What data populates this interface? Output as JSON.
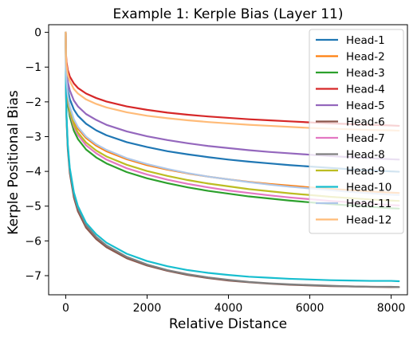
{
  "chart_data": {
    "type": "line",
    "title": "Example 1: Kerple Bias (Layer 11)",
    "xlabel": "Relative Distance",
    "ylabel": "Kerple Positional Bias",
    "xlim": [
      -420,
      8400
    ],
    "ylim": [
      -7.55,
      0.22
    ],
    "xticks": [
      0,
      2000,
      4000,
      6000,
      8000
    ],
    "xtick_labels": [
      "0",
      "2000",
      "4000",
      "6000",
      "8000"
    ],
    "yticks": [
      0,
      -1,
      -2,
      -3,
      -4,
      -5,
      -6,
      -7
    ],
    "ytick_labels": [
      "0",
      "−1",
      "−2",
      "−3",
      "−4",
      "−5",
      "−6",
      "−7"
    ],
    "grid": false,
    "legend_position": "top-right",
    "x": [
      0,
      5,
      20,
      50,
      100,
      200,
      300,
      500,
      750,
      1000,
      1500,
      2000,
      2500,
      3000,
      3500,
      4000,
      4500,
      5000,
      5500,
      6000,
      6500,
      7000,
      7500,
      8000,
      8191
    ],
    "series": [
      {
        "name": "Head-1",
        "color": "#1f77b4",
        "values": [
          0,
          -0.95,
          -1.32,
          -1.65,
          -1.92,
          -2.22,
          -2.4,
          -2.63,
          -2.82,
          -2.96,
          -3.16,
          -3.3,
          -3.42,
          -3.51,
          -3.59,
          -3.66,
          -3.72,
          -3.77,
          -3.82,
          -3.86,
          -3.9,
          -3.94,
          -3.97,
          -4.0,
          -4.01
        ]
      },
      {
        "name": "Head-2",
        "color": "#ff7f0e",
        "values": [
          0,
          -1.0,
          -1.45,
          -1.85,
          -2.18,
          -2.55,
          -2.77,
          -3.04,
          -3.26,
          -3.42,
          -3.65,
          -3.82,
          -3.95,
          -4.06,
          -4.15,
          -4.23,
          -4.3,
          -4.36,
          -4.41,
          -4.46,
          -4.5,
          -4.54,
          -4.58,
          -4.61,
          -4.62
        ]
      },
      {
        "name": "Head-3",
        "color": "#2ca02c",
        "values": [
          0,
          -1.1,
          -1.6,
          -2.05,
          -2.42,
          -2.83,
          -3.07,
          -3.37,
          -3.6,
          -3.77,
          -4.02,
          -4.2,
          -4.34,
          -4.46,
          -4.56,
          -4.64,
          -4.72,
          -4.78,
          -4.84,
          -4.89,
          -4.94,
          -4.98,
          -5.02,
          -5.06,
          -5.07
        ]
      },
      {
        "name": "Head-4",
        "color": "#d62728",
        "values": [
          0,
          -0.6,
          -0.85,
          -1.08,
          -1.27,
          -1.47,
          -1.6,
          -1.76,
          -1.89,
          -1.99,
          -2.13,
          -2.23,
          -2.31,
          -2.37,
          -2.42,
          -2.46,
          -2.5,
          -2.53,
          -2.56,
          -2.59,
          -2.62,
          -2.64,
          -2.66,
          -2.68,
          -2.69
        ]
      },
      {
        "name": "Head-5",
        "color": "#9467bd",
        "values": [
          0,
          -0.8,
          -1.12,
          -1.42,
          -1.67,
          -1.96,
          -2.13,
          -2.35,
          -2.52,
          -2.66,
          -2.85,
          -2.99,
          -3.1,
          -3.19,
          -3.27,
          -3.33,
          -3.39,
          -3.44,
          -3.48,
          -3.52,
          -3.56,
          -3.59,
          -3.62,
          -3.65,
          -3.66
        ]
      },
      {
        "name": "Head-6",
        "color": "#8c564b",
        "values": [
          0,
          -1.6,
          -2.5,
          -3.35,
          -4.05,
          -4.75,
          -5.15,
          -5.62,
          -5.95,
          -6.18,
          -6.5,
          -6.71,
          -6.86,
          -6.98,
          -7.07,
          -7.14,
          -7.19,
          -7.23,
          -7.26,
          -7.28,
          -7.3,
          -7.31,
          -7.32,
          -7.33,
          -7.33
        ]
      },
      {
        "name": "Head-7",
        "color": "#e377c2",
        "values": [
          0,
          -1.05,
          -1.52,
          -1.95,
          -2.31,
          -2.71,
          -2.95,
          -3.25,
          -3.48,
          -3.66,
          -3.91,
          -4.09,
          -4.24,
          -4.36,
          -4.46,
          -4.55,
          -4.62,
          -4.69,
          -4.75,
          -4.8,
          -4.85,
          -4.89,
          -4.93,
          -4.97,
          -4.98
        ]
      },
      {
        "name": "Head-8",
        "color": "#7f7f7f",
        "values": [
          0,
          -1.55,
          -2.45,
          -3.28,
          -3.97,
          -4.67,
          -5.07,
          -5.55,
          -5.89,
          -6.13,
          -6.46,
          -6.68,
          -6.84,
          -6.96,
          -7.05,
          -7.12,
          -7.18,
          -7.22,
          -7.25,
          -7.27,
          -7.29,
          -7.31,
          -7.32,
          -7.32,
          -7.33
        ]
      },
      {
        "name": "Head-9",
        "color": "#bcbd22",
        "values": [
          0,
          -1.02,
          -1.48,
          -1.9,
          -2.25,
          -2.65,
          -2.88,
          -3.17,
          -3.4,
          -3.57,
          -3.81,
          -3.99,
          -4.13,
          -4.25,
          -4.35,
          -4.43,
          -4.51,
          -4.57,
          -4.63,
          -4.68,
          -4.73,
          -4.77,
          -4.81,
          -4.84,
          -4.85
        ]
      },
      {
        "name": "Head-10",
        "color": "#17becf",
        "values": [
          0,
          -1.5,
          -2.4,
          -3.22,
          -3.9,
          -4.6,
          -5.0,
          -5.48,
          -5.81,
          -6.05,
          -6.37,
          -6.58,
          -6.73,
          -6.84,
          -6.92,
          -6.98,
          -7.03,
          -7.06,
          -7.09,
          -7.11,
          -7.13,
          -7.14,
          -7.15,
          -7.15,
          -7.16
        ]
      },
      {
        "name": "Head-11",
        "color": "#aec7e8",
        "values": [
          0,
          -0.98,
          -1.4,
          -1.8,
          -2.13,
          -2.5,
          -2.72,
          -3.0,
          -3.22,
          -3.38,
          -3.62,
          -3.79,
          -3.93,
          -4.05,
          -4.15,
          -4.23,
          -4.31,
          -4.38,
          -4.44,
          -4.49,
          -4.54,
          -4.59,
          -4.63,
          -4.67,
          -4.68
        ]
      },
      {
        "name": "Head-12",
        "color": "#ffbb78",
        "values": [
          0,
          -0.68,
          -0.95,
          -1.2,
          -1.4,
          -1.63,
          -1.76,
          -1.93,
          -2.06,
          -2.16,
          -2.3,
          -2.4,
          -2.47,
          -2.53,
          -2.58,
          -2.62,
          -2.66,
          -2.69,
          -2.72,
          -2.75,
          -2.77,
          -2.79,
          -2.81,
          -2.82,
          -2.83
        ]
      }
    ]
  }
}
